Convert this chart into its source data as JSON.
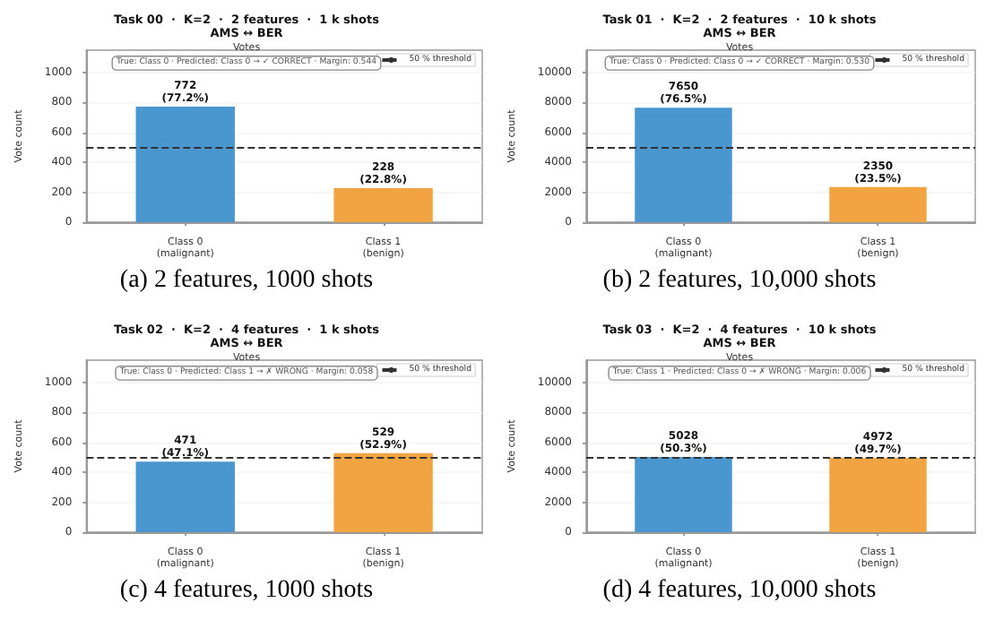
{
  "chart_data": [
    {
      "type": "bar",
      "title": "Task 00  ·  K=2  ·  2 features  ·  1 k shots\nAMS ↔ BER",
      "subtitle": "Votes",
      "ylabel": "Vote count",
      "categories": [
        "Class 0\n(malignant)",
        "Class 1\n(benign)"
      ],
      "values": [
        772,
        228
      ],
      "colors": [
        "#4a97cf",
        "#f2a443"
      ],
      "value_labels": [
        "772\n(77.2%)",
        "228\n(22.8%)"
      ],
      "ylim": [
        0,
        1150
      ],
      "yticks": [
        0,
        200,
        400,
        600,
        800,
        1000
      ],
      "grid": "y",
      "legend": "top right",
      "ref_lines": [
        {
          "axis": "y",
          "value": 500,
          "label": "50 % threshold",
          "color": "#333333",
          "line_style": "dashed"
        }
      ],
      "annotations": [
        "True: Class 0 · Predicted: Class 0 → ✓ CORRECT · Margin: 0.544",
        "(a) 2 features, 1000 shots"
      ]
    },
    {
      "type": "bar",
      "title": "Task 01  ·  K=2  ·  2 features  ·  10 k shots\nAMS ↔ BER",
      "subtitle": "Votes",
      "ylabel": "Vote count",
      "categories": [
        "Class 0\n(malignant)",
        "Class 1\n(benign)"
      ],
      "values": [
        7650,
        2350
      ],
      "colors": [
        "#4a97cf",
        "#f2a443"
      ],
      "value_labels": [
        "7650\n(76.5%)",
        "2350\n(23.5%)"
      ],
      "ylim": [
        0,
        11500
      ],
      "yticks": [
        0,
        2000,
        4000,
        6000,
        8000,
        10000
      ],
      "grid": "y",
      "legend": "top right",
      "ref_lines": [
        {
          "axis": "y",
          "value": 5000,
          "label": "50 % threshold",
          "color": "#333333",
          "line_style": "dashed"
        }
      ],
      "annotations": [
        "True: Class 0 · Predicted: Class 0 → ✓ CORRECT · Margin: 0.530",
        "(b) 2 features, 10,000 shots"
      ]
    },
    {
      "type": "bar",
      "title": "Task 02  ·  K=2  ·  4 features  ·  1 k shots\nAMS ↔ BER",
      "subtitle": "Votes",
      "ylabel": "Vote count",
      "categories": [
        "Class 0\n(malignant)",
        "Class 1\n(benign)"
      ],
      "values": [
        471,
        529
      ],
      "colors": [
        "#4a97cf",
        "#f2a443"
      ],
      "value_labels": [
        "471\n(47.1%)",
        "529\n(52.9%)"
      ],
      "ylim": [
        0,
        1150
      ],
      "yticks": [
        0,
        200,
        400,
        600,
        800,
        1000
      ],
      "grid": "y",
      "legend": "top right",
      "ref_lines": [
        {
          "axis": "y",
          "value": 500,
          "label": "50 % threshold",
          "color": "#333333",
          "line_style": "dashed"
        }
      ],
      "annotations": [
        "True: Class 0 · Predicted: Class 1 → ✗ WRONG · Margin: 0.058",
        "(c) 4 features, 1000 shots"
      ]
    },
    {
      "type": "bar",
      "title": "Task 03  ·  K=2  ·  4 features  ·  10 k shots\nAMS ↔ BER",
      "subtitle": "Votes",
      "ylabel": "Vote count",
      "categories": [
        "Class 0\n(malignant)",
        "Class 1\n(benign)"
      ],
      "values": [
        5028,
        4972
      ],
      "colors": [
        "#4a97cf",
        "#f2a443"
      ],
      "value_labels": [
        "5028\n(50.3%)",
        "4972\n(49.7%)"
      ],
      "ylim": [
        0,
        11500
      ],
      "yticks": [
        0,
        2000,
        4000,
        6000,
        8000,
        10000
      ],
      "grid": "y",
      "legend": "top right",
      "ref_lines": [
        {
          "axis": "y",
          "value": 5000,
          "label": "50 % threshold",
          "color": "#333333",
          "line_style": "dashed"
        }
      ],
      "annotations": [
        "True: Class 1 · Predicted: Class 0 → ✗ WRONG · Margin: 0.006",
        "(d) 4 features, 10,000 shots"
      ]
    }
  ]
}
